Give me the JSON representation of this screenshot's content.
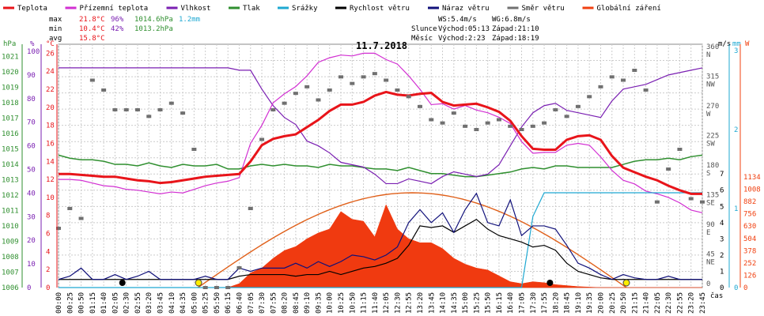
{
  "legend": [
    {
      "key": "teplota",
      "label": "Teplota",
      "color": "#e8141a"
    },
    {
      "key": "prizemni",
      "label": "Přízemní teplota",
      "color": "#d22fd2"
    },
    {
      "key": "vlhkost",
      "label": "Vlhkost",
      "color": "#7a1fb2"
    },
    {
      "key": "tlak",
      "label": "Tlak",
      "color": "#2f8f2f"
    },
    {
      "key": "srazky",
      "label": "Srážky",
      "color": "#1ea8d2"
    },
    {
      "key": "rychlost",
      "label": "Rychlost větru",
      "color": "#000000"
    },
    {
      "key": "naraz",
      "label": "Náraz větru",
      "color": "#10107a"
    },
    {
      "key": "smer",
      "label": "Směr větru",
      "color": "#707070"
    },
    {
      "key": "zareni",
      "label": "Globální záření",
      "color": "#f04010"
    }
  ],
  "stats": {
    "max": {
      "label": "max",
      "temp": "21.8°C",
      "hum": "96%",
      "press": "1014.6hPa",
      "rain": "1.2mm"
    },
    "min": {
      "label": "min",
      "temp": "10.4°C",
      "hum": "42%",
      "press": "1013.2hPa"
    },
    "avg": {
      "label": "avg",
      "temp": "15.8°C"
    }
  },
  "wind_info": {
    "ws": "WS:5.4m/s",
    "wg": "WG:6.8m/s",
    "sun_label": "Slunce",
    "sun_rise": "Východ:05:13",
    "sun_set": "Západ:21:10",
    "moon_label": "Měsíc",
    "moon_rise": "Východ:2:23",
    "moon_set": "Západ:18:19"
  },
  "title": "11.7.2018",
  "axis_units": {
    "hpa": "hPa",
    "pct": "%",
    "deg": "°C",
    "ms": "m/s",
    "mm": "mm",
    "w": "W"
  },
  "xlabel": "čas",
  "chart_data": {
    "type": "line",
    "title": "11.7.2018",
    "x": [
      "00:00",
      "00:25",
      "00:50",
      "01:15",
      "01:40",
      "02:05",
      "02:30",
      "02:55",
      "03:20",
      "03:45",
      "04:10",
      "04:35",
      "05:00",
      "05:25",
      "05:50",
      "06:15",
      "06:40",
      "07:05",
      "07:30",
      "07:55",
      "08:20",
      "08:45",
      "09:10",
      "09:35",
      "10:00",
      "10:25",
      "10:50",
      "11:15",
      "11:40",
      "12:05",
      "12:30",
      "12:55",
      "13:20",
      "13:45",
      "14:10",
      "14:35",
      "15:00",
      "15:25",
      "15:50",
      "16:15",
      "16:40",
      "17:05",
      "17:30",
      "17:55",
      "18:20",
      "18:45",
      "19:10",
      "19:35",
      "20:00",
      "20:25",
      "20:50",
      "21:15",
      "21:40",
      "22:05",
      "22:30",
      "22:55",
      "23:20",
      "23:45"
    ],
    "y_axes": {
      "pressure_hpa": {
        "ticks": [
          1006,
          1007,
          1008,
          1009,
          1010,
          1011,
          1012,
          1013,
          1014,
          1015,
          1016,
          1017,
          1018,
          1019,
          1020,
          1021
        ]
      },
      "humidity_pct": {
        "ticks": [
          0,
          10,
          20,
          30,
          40,
          50,
          60,
          70,
          80,
          90,
          100
        ]
      },
      "temperature_c": {
        "ticks": [
          0,
          2,
          4,
          6,
          8,
          10,
          12,
          14,
          16,
          18,
          20,
          22,
          24,
          26
        ]
      },
      "wind_ms": {
        "ticks": [
          0,
          1,
          2,
          3,
          4,
          5,
          6,
          7
        ]
      },
      "wind_dir": {
        "ticks": [
          "0",
          "45 NE",
          "90 E",
          "135 SE",
          "180 S",
          "225 SW",
          "270 W",
          "315 NW",
          "360 N"
        ]
      },
      "rain_mm": {
        "ticks": [
          0,
          1,
          2,
          3
        ]
      },
      "radiation_w": {
        "ticks": [
          0,
          126,
          252,
          378,
          504,
          630,
          756,
          882,
          1008,
          1134
        ]
      }
    },
    "series": [
      {
        "name": "Teplota",
        "unit": "°C",
        "values": [
          12.6,
          12.6,
          12.5,
          12.4,
          12.3,
          12.3,
          12.1,
          11.9,
          11.8,
          11.6,
          11.7,
          11.9,
          12.1,
          12.3,
          12.4,
          12.5,
          12.6,
          14.0,
          15.8,
          16.5,
          16.8,
          17.0,
          17.8,
          18.6,
          19.6,
          20.3,
          20.3,
          20.6,
          21.3,
          21.7,
          21.4,
          21.3,
          21.5,
          21.6,
          20.6,
          20.2,
          20.3,
          20.4,
          20.0,
          19.5,
          18.5,
          16.8,
          15.4,
          15.3,
          15.3,
          16.4,
          16.8,
          16.9,
          16.4,
          14.6,
          13.3,
          12.8,
          12.3,
          11.9,
          11.3,
          10.8,
          10.4,
          10.4
        ]
      },
      {
        "name": "Přízemní teplota",
        "unit": "°C",
        "values": [
          12.0,
          12.0,
          11.9,
          11.6,
          11.3,
          11.2,
          10.9,
          10.8,
          10.6,
          10.4,
          10.6,
          10.5,
          10.9,
          11.3,
          11.6,
          11.8,
          12.2,
          16.0,
          18.0,
          20.5,
          21.5,
          22.3,
          23.5,
          25.0,
          25.5,
          25.8,
          25.7,
          26.0,
          26.0,
          25.3,
          24.8,
          23.5,
          22.0,
          20.3,
          20.4,
          19.8,
          20.2,
          19.7,
          19.4,
          18.9,
          18.2,
          16.2,
          14.9,
          15.0,
          15.0,
          15.8,
          16.0,
          15.8,
          14.5,
          13.0,
          11.9,
          11.5,
          10.7,
          10.4,
          10.0,
          9.4,
          8.6,
          8.3
        ]
      },
      {
        "name": "Vlhkost",
        "unit": "%",
        "values": [
          93,
          93,
          93,
          93,
          93,
          93,
          93,
          93,
          93,
          93,
          93,
          93,
          93,
          93,
          93,
          93,
          92,
          92,
          84,
          77,
          72,
          69,
          62,
          60,
          57,
          53,
          52,
          51,
          48,
          44,
          44,
          46,
          45,
          44,
          47,
          49,
          48,
          47,
          48,
          52,
          60,
          68,
          74,
          77,
          78,
          75,
          74,
          73,
          72,
          79,
          84,
          85,
          86,
          88,
          90,
          91,
          92,
          93
        ]
      },
      {
        "name": "Tlak",
        "unit": "hPa",
        "values": [
          1014.6,
          1014.4,
          1014.3,
          1014.3,
          1014.2,
          1014.0,
          1014.0,
          1013.9,
          1014.1,
          1013.9,
          1013.8,
          1014.0,
          1013.9,
          1013.9,
          1014.0,
          1013.7,
          1013.7,
          1013.9,
          1014.0,
          1013.9,
          1014.0,
          1013.9,
          1013.9,
          1013.8,
          1014.0,
          1013.9,
          1013.9,
          1013.8,
          1013.7,
          1013.7,
          1013.6,
          1013.8,
          1013.6,
          1013.4,
          1013.4,
          1013.3,
          1013.2,
          1013.2,
          1013.3,
          1013.4,
          1013.5,
          1013.7,
          1013.8,
          1013.7,
          1013.9,
          1013.9,
          1013.8,
          1013.8,
          1013.8,
          1013.8,
          1014.0,
          1014.2,
          1014.3,
          1014.3,
          1014.4,
          1014.3,
          1014.5,
          1014.6
        ]
      },
      {
        "name": "Srážky",
        "unit": "mm",
        "values": [
          0,
          0,
          0,
          0,
          0,
          0,
          0,
          0,
          0,
          0,
          0,
          0,
          0,
          0,
          0,
          0,
          0,
          0,
          0,
          0,
          0,
          0,
          0,
          0,
          0,
          0,
          0,
          0,
          0,
          0,
          0,
          0,
          0,
          0,
          0,
          0,
          0,
          0,
          0,
          0,
          0,
          0,
          0.9,
          1.2,
          1.2,
          1.2,
          1.2,
          1.2,
          1.2,
          1.2,
          1.2,
          1.2,
          1.2,
          1.2,
          1.2,
          1.2,
          1.2,
          1.2
        ]
      },
      {
        "name": "Rychlost větru",
        "unit": "m/s",
        "values": [
          0.5,
          0.5,
          0.5,
          0.5,
          0.5,
          0.5,
          0.5,
          0.5,
          0.5,
          0.5,
          0.5,
          0.5,
          0.5,
          0.5,
          0.5,
          0.5,
          0.7,
          0.8,
          0.8,
          0.8,
          0.8,
          0.7,
          0.8,
          0.8,
          1.0,
          0.8,
          1.0,
          1.2,
          1.3,
          1.5,
          1.8,
          2.6,
          3.8,
          3.7,
          3.8,
          3.4,
          3.8,
          4.2,
          3.6,
          3.2,
          3.0,
          2.8,
          2.5,
          2.6,
          2.3,
          1.5,
          1.0,
          0.8,
          0.6,
          0.5,
          0.5,
          0.5,
          0.5,
          0.5,
          0.5,
          0.5,
          0.5,
          0.5
        ]
      },
      {
        "name": "Náraz větru",
        "unit": "m/s",
        "values": [
          0.5,
          0.7,
          1.2,
          0.5,
          0.5,
          0.8,
          0.5,
          0.7,
          1.0,
          0.5,
          0.5,
          0.5,
          0.5,
          0.7,
          0.5,
          0.5,
          1.2,
          1.0,
          1.2,
          1.2,
          1.2,
          1.5,
          1.2,
          1.6,
          1.3,
          1.6,
          2.0,
          1.9,
          1.7,
          2.0,
          2.5,
          4.0,
          4.8,
          4.0,
          4.6,
          3.4,
          4.8,
          5.8,
          4.0,
          3.8,
          5.4,
          3.2,
          3.8,
          3.8,
          3.6,
          2.6,
          1.5,
          1.2,
          0.8,
          0.5,
          0.8,
          0.6,
          0.5,
          0.5,
          0.7,
          0.5,
          0.5,
          0.5
        ]
      },
      {
        "name": "Směr větru",
        "unit": "°",
        "values": [
          90,
          120,
          105,
          315,
          300,
          270,
          270,
          270,
          260,
          270,
          280,
          265,
          210,
          0,
          0,
          0,
          30,
          120,
          225,
          270,
          280,
          295,
          305,
          285,
          300,
          320,
          310,
          320,
          325,
          315,
          300,
          290,
          275,
          255,
          250,
          265,
          245,
          240,
          250,
          255,
          245,
          240,
          245,
          250,
          270,
          260,
          275,
          290,
          305,
          320,
          315,
          330,
          300,
          130,
          180,
          210,
          135,
          130
        ]
      },
      {
        "name": "Globální záření",
        "unit": "W/m²",
        "values": [
          0,
          0,
          0,
          0,
          0,
          0,
          0,
          0,
          0,
          0,
          0,
          0,
          0,
          0,
          0,
          0,
          40,
          150,
          200,
          300,
          380,
          420,
          500,
          560,
          600,
          780,
          700,
          680,
          520,
          850,
          600,
          500,
          460,
          460,
          400,
          300,
          240,
          200,
          180,
          120,
          60,
          40,
          60,
          50,
          30,
          20,
          10,
          5,
          0,
          0,
          0,
          0,
          0,
          0,
          0,
          0,
          0,
          0
        ]
      }
    ]
  }
}
